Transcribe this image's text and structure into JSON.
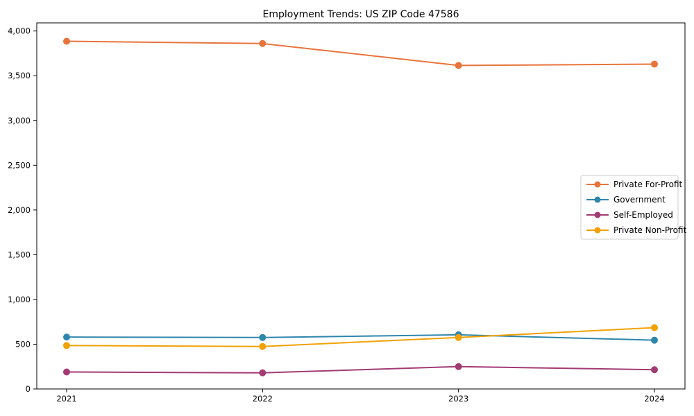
{
  "window": {
    "background_color": "#ffffff"
  },
  "chart_data": {
    "type": "line",
    "title": "Employment Trends: US ZIP Code 47586",
    "xlabel": "",
    "ylabel": "",
    "categories": [
      "2021",
      "2022",
      "2023",
      "2024"
    ],
    "series": [
      {
        "name": "Private For-Profit",
        "color": "#E8743B",
        "values": [
          3885,
          3860,
          3615,
          3630
        ]
      },
      {
        "name": "Government",
        "color": "#2E86AB",
        "values": [
          580,
          575,
          605,
          545
        ]
      },
      {
        "name": "Self-Employed",
        "color": "#A23B72",
        "values": [
          190,
          180,
          250,
          215
        ]
      },
      {
        "name": "Private Non-Profit",
        "color": "#F2A104",
        "values": [
          485,
          475,
          575,
          685
        ]
      }
    ],
    "ylim": [
      0,
      4000
    ],
    "yticks": [
      0,
      500,
      1000,
      1500,
      2000,
      2500,
      3000,
      3500,
      4000
    ],
    "ytick_labels": [
      "0",
      "500",
      "1,000",
      "1,500",
      "2,000",
      "2,500",
      "3,000",
      "3,500",
      "4,000"
    ],
    "grid": false,
    "legend_position": "center-right",
    "legend_border_color": "#cccccc",
    "axis_color": "#000000",
    "marker": "circle",
    "line_width": 2
  }
}
